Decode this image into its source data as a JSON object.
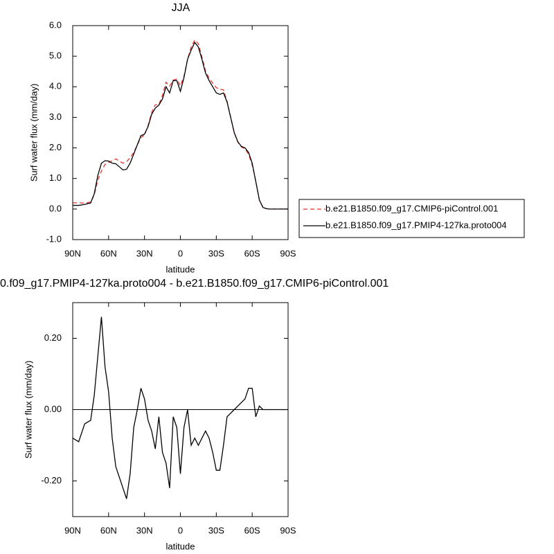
{
  "chart_data": [
    {
      "type": "line",
      "title": "JJA",
      "xlabel": "latitude",
      "ylabel": "Surf water flux (mm/day)",
      "x": [
        90,
        85,
        80,
        75,
        72,
        69,
        66,
        63,
        60,
        57,
        54,
        51,
        48,
        45,
        42,
        39,
        36,
        33,
        30,
        27,
        24,
        21,
        18,
        15,
        12,
        9,
        6,
        3,
        0,
        -3,
        -6,
        -9,
        -12,
        -15,
        -18,
        -21,
        -24,
        -27,
        -30,
        -33,
        -36,
        -39,
        -42,
        -45,
        -48,
        -51,
        -54,
        -57,
        -60,
        -63,
        -66,
        -69,
        -72,
        -75,
        -80,
        -85,
        -90
      ],
      "xlim": [
        90,
        -90
      ],
      "xticks": [
        {
          "value": 90,
          "label": "90N"
        },
        {
          "value": 60,
          "label": "60N"
        },
        {
          "value": 30,
          "label": "30N"
        },
        0,
        {
          "value": -30,
          "label": "30S"
        },
        {
          "value": -60,
          "label": "60S"
        },
        {
          "value": -90,
          "label": "90S"
        }
      ],
      "ylim": [
        -1,
        6
      ],
      "yticks": [
        {
          "value": -1,
          "label": "-1.0"
        },
        {
          "value": 0,
          "label": "0.0"
        },
        {
          "value": 1,
          "label": "1.0"
        },
        {
          "value": 2,
          "label": "2.0"
        },
        {
          "value": 3,
          "label": "3.0"
        },
        {
          "value": 4,
          "label": "4.0"
        },
        {
          "value": 5,
          "label": "5.0"
        },
        {
          "value": 6,
          "label": "6.0"
        }
      ],
      "legend": "right",
      "series": [
        {
          "name": "b.e21.B1850.f09_g17.CMIP6-piControl.001",
          "color": "#e8322b",
          "dashed": true,
          "values": [
            0.2,
            0.21,
            0.19,
            0.23,
            0.46,
            0.95,
            1.24,
            1.46,
            1.52,
            1.58,
            1.64,
            1.57,
            1.5,
            1.55,
            1.68,
            1.85,
            2.1,
            2.34,
            2.42,
            2.73,
            3.16,
            3.41,
            3.42,
            3.72,
            4.15,
            4.02,
            4.22,
            4.25,
            4.03,
            4.35,
            4.9,
            5.3,
            5.53,
            5.4,
            4.98,
            4.51,
            4.28,
            4.12,
            3.97,
            3.92,
            3.9,
            3.52,
            3.01,
            2.5,
            2.19,
            2.03,
            1.97,
            1.79,
            1.44,
            0.92,
            0.29,
            0.05,
            0.01,
            0,
            0,
            0,
            0
          ]
        },
        {
          "name": "b.e21.B1850.f09_g17.PMIP4-127ka.proto004",
          "color": "#000000",
          "dashed": false,
          "values": [
            0.12,
            0.12,
            0.15,
            0.2,
            0.5,
            1.1,
            1.5,
            1.58,
            1.57,
            1.5,
            1.48,
            1.38,
            1.28,
            1.3,
            1.5,
            1.8,
            2.1,
            2.4,
            2.45,
            2.7,
            3.1,
            3.3,
            3.4,
            3.6,
            4.0,
            3.8,
            4.2,
            4.2,
            3.85,
            4.3,
            4.9,
            5.2,
            5.45,
            5.3,
            4.9,
            4.45,
            4.2,
            4.0,
            3.8,
            3.75,
            3.8,
            3.5,
            3.0,
            2.5,
            2.2,
            2.05,
            2.0,
            1.85,
            1.5,
            0.9,
            0.3,
            0.05,
            0.01,
            0,
            0,
            0,
            0
          ]
        }
      ]
    },
    {
      "type": "line",
      "title": "0.f09_g17.PMIP4-127ka.proto004 - b.e21.B1850.f09_g17.CMIP6-piControl.001",
      "xlabel": "latitude",
      "ylabel": "Surf water flux (mm/day)",
      "x": [
        90,
        85,
        80,
        75,
        72,
        69,
        66,
        63,
        60,
        57,
        54,
        51,
        48,
        45,
        42,
        39,
        36,
        33,
        30,
        27,
        24,
        21,
        18,
        15,
        12,
        9,
        6,
        3,
        0,
        -3,
        -6,
        -9,
        -12,
        -15,
        -18,
        -21,
        -24,
        -27,
        -30,
        -33,
        -36,
        -39,
        -42,
        -45,
        -48,
        -51,
        -54,
        -57,
        -60,
        -63,
        -66,
        -69,
        -72,
        -75,
        -80,
        -85,
        -90
      ],
      "xlim": [
        90,
        -90
      ],
      "xticks": [
        {
          "value": 90,
          "label": "90N"
        },
        {
          "value": 60,
          "label": "60N"
        },
        {
          "value": 30,
          "label": "30N"
        },
        0,
        {
          "value": -30,
          "label": "30S"
        },
        {
          "value": -60,
          "label": "60S"
        },
        {
          "value": -90,
          "label": "90S"
        }
      ],
      "ylim": [
        -0.3,
        0.3
      ],
      "yticks": [
        {
          "value": -0.2,
          "label": "-0.20"
        },
        {
          "value": 0,
          "label": "0.00"
        },
        {
          "value": 0.2,
          "label": "0.20"
        }
      ],
      "reference_line": 0,
      "series": [
        {
          "color": "#000000",
          "dashed": false,
          "values": [
            -0.08,
            -0.09,
            -0.04,
            -0.03,
            0.04,
            0.15,
            0.26,
            0.12,
            0.05,
            -0.08,
            -0.16,
            -0.19,
            -0.22,
            -0.25,
            -0.18,
            -0.05,
            0.0,
            0.06,
            0.03,
            -0.03,
            -0.06,
            -0.11,
            -0.02,
            -0.12,
            -0.15,
            -0.22,
            -0.02,
            -0.05,
            -0.18,
            -0.05,
            0.0,
            -0.1,
            -0.08,
            -0.1,
            -0.08,
            -0.06,
            -0.08,
            -0.12,
            -0.17,
            -0.17,
            -0.1,
            -0.02,
            -0.01,
            0.0,
            0.01,
            0.02,
            0.03,
            0.06,
            0.06,
            -0.02,
            0.01,
            0.0,
            0.0,
            0.0,
            0.0,
            0.0,
            0.0
          ]
        }
      ]
    }
  ]
}
